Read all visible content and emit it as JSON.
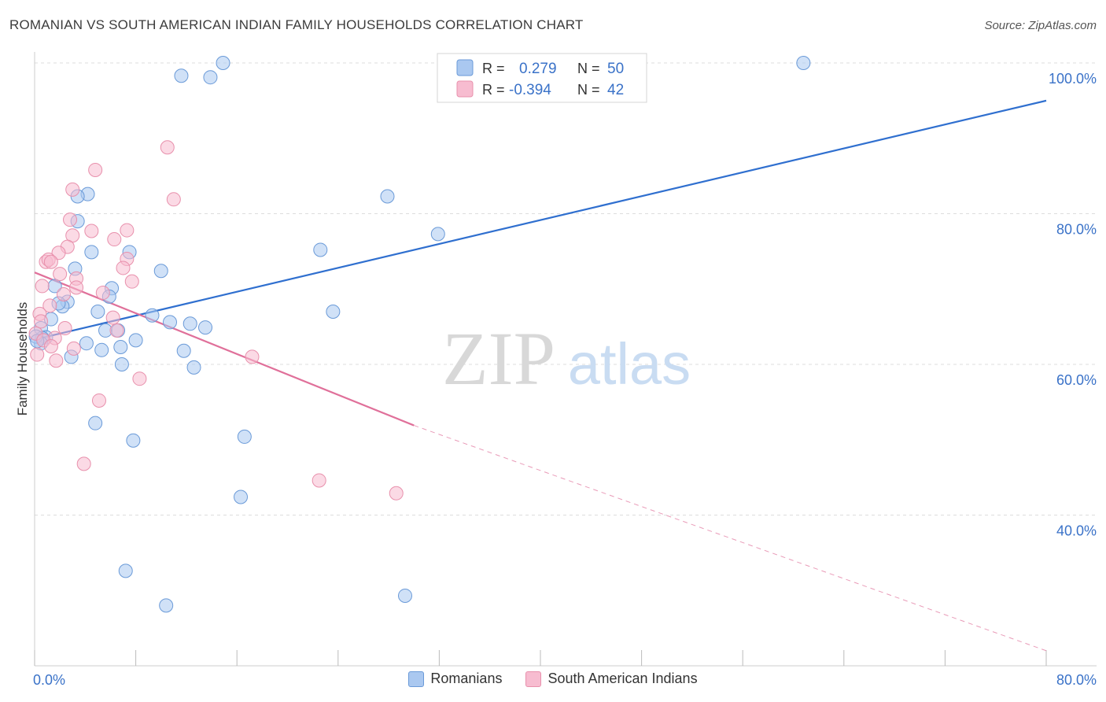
{
  "title": "ROMANIAN VS SOUTH AMERICAN INDIAN FAMILY HOUSEHOLDS CORRELATION CHART",
  "source": "Source: ZipAtlas.com",
  "watermark": {
    "zip": "ZIP",
    "atlas": "atlas"
  },
  "legend_box": {
    "rows": [
      {
        "r_label": "R =",
        "r_value": "0.279",
        "n_label": "N =",
        "n_value": "50"
      },
      {
        "r_label": "R =",
        "r_value": "-0.394",
        "n_label": "N =",
        "n_value": "42"
      }
    ]
  },
  "bottom_legend": {
    "romanians": "Romanians",
    "south_american_indians": "South American Indians"
  },
  "colors": {
    "blue_fill": "#aac8f0",
    "blue_stroke": "#6a9ad8",
    "blue_line": "#2f6fcf",
    "pink_fill": "#f7bcd0",
    "pink_stroke": "#e890ac",
    "pink_line": "#e0709a",
    "value_text": "#3a72c8",
    "grid": "#dddddd"
  },
  "chart_data": {
    "type": "scatter",
    "title": "ROMANIAN VS SOUTH AMERICAN INDIAN FAMILY HOUSEHOLDS CORRELATION CHART",
    "xlabel": "",
    "ylabel": "Family Households",
    "xlim": [
      0,
      80
    ],
    "ylim": [
      20,
      100
    ],
    "x_tick_labels": [
      {
        "value": 0,
        "label": "0.0%"
      },
      {
        "value": 80,
        "label": "80.0%"
      }
    ],
    "y_tick_labels": [
      {
        "value": 100,
        "label": "100.0%"
      },
      {
        "value": 80,
        "label": "80.0%"
      },
      {
        "value": 60,
        "label": "60.0%"
      },
      {
        "value": 40,
        "label": "40.0%"
      }
    ],
    "series": [
      {
        "name": "Romanians",
        "R": 0.279,
        "N": 50,
        "trend": {
          "x0": 0,
          "y0": 63.3,
          "x1": 80,
          "y1": 95.0
        },
        "points": [
          [
            14.9,
            100.0
          ],
          [
            11.6,
            98.3
          ],
          [
            13.9,
            98.1
          ],
          [
            60.8,
            100.0
          ],
          [
            4.2,
            82.6
          ],
          [
            3.4,
            82.3
          ],
          [
            27.9,
            82.3
          ],
          [
            3.4,
            79.0
          ],
          [
            31.9,
            77.3
          ],
          [
            4.5,
            74.9
          ],
          [
            22.6,
            75.2
          ],
          [
            7.5,
            74.9
          ],
          [
            3.2,
            72.7
          ],
          [
            10.0,
            72.4
          ],
          [
            1.6,
            70.4
          ],
          [
            6.1,
            70.1
          ],
          [
            2.6,
            68.3
          ],
          [
            2.2,
            67.7
          ],
          [
            5.9,
            69.0
          ],
          [
            5.0,
            67.0
          ],
          [
            23.6,
            67.0
          ],
          [
            9.3,
            66.5
          ],
          [
            1.3,
            66.0
          ],
          [
            0.5,
            64.8
          ],
          [
            0.9,
            63.6
          ],
          [
            10.7,
            65.6
          ],
          [
            12.3,
            65.4
          ],
          [
            13.5,
            64.9
          ],
          [
            0.6,
            63.5
          ],
          [
            5.6,
            64.5
          ],
          [
            6.6,
            64.5
          ],
          [
            8.0,
            63.2
          ],
          [
            0.5,
            62.8
          ],
          [
            4.1,
            62.8
          ],
          [
            6.8,
            62.3
          ],
          [
            5.3,
            61.9
          ],
          [
            11.8,
            61.8
          ],
          [
            2.9,
            61.0
          ],
          [
            6.9,
            60.0
          ],
          [
            12.6,
            59.6
          ],
          [
            4.8,
            52.2
          ],
          [
            7.8,
            49.9
          ],
          [
            16.6,
            50.4
          ],
          [
            16.3,
            42.4
          ],
          [
            7.2,
            32.6
          ],
          [
            10.4,
            28.0
          ],
          [
            29.3,
            29.3
          ],
          [
            0.1,
            63.7
          ],
          [
            1.9,
            68.1
          ],
          [
            0.2,
            63.1
          ]
        ]
      },
      {
        "name": "South American Indians",
        "R": -0.394,
        "N": 42,
        "trend": {
          "x0": 0,
          "y0": 72.2,
          "x1": 30.0,
          "y1": 51.9
        },
        "trend_extension": {
          "x0": 30.0,
          "y0": 51.9,
          "x1": 80,
          "y1": 22.0
        },
        "points": [
          [
            10.5,
            88.8
          ],
          [
            4.8,
            85.8
          ],
          [
            3.0,
            83.2
          ],
          [
            11.0,
            81.9
          ],
          [
            2.8,
            79.2
          ],
          [
            7.3,
            77.8
          ],
          [
            4.5,
            77.7
          ],
          [
            3.0,
            77.1
          ],
          [
            6.3,
            76.6
          ],
          [
            2.6,
            75.6
          ],
          [
            1.9,
            74.8
          ],
          [
            0.9,
            73.6
          ],
          [
            7.3,
            74.0
          ],
          [
            1.1,
            73.9
          ],
          [
            1.3,
            73.6
          ],
          [
            2.0,
            72.0
          ],
          [
            7.0,
            72.8
          ],
          [
            3.3,
            71.4
          ],
          [
            7.7,
            71.0
          ],
          [
            0.6,
            70.4
          ],
          [
            3.3,
            70.2
          ],
          [
            5.4,
            69.5
          ],
          [
            2.3,
            69.3
          ],
          [
            1.2,
            67.8
          ],
          [
            0.4,
            66.7
          ],
          [
            6.2,
            66.2
          ],
          [
            0.5,
            65.7
          ],
          [
            2.4,
            64.8
          ],
          [
            6.5,
            64.5
          ],
          [
            0.1,
            64.1
          ],
          [
            1.6,
            63.5
          ],
          [
            0.7,
            63.2
          ],
          [
            3.1,
            62.1
          ],
          [
            1.3,
            62.4
          ],
          [
            0.2,
            61.3
          ],
          [
            1.7,
            60.5
          ],
          [
            17.2,
            61.0
          ],
          [
            8.3,
            58.1
          ],
          [
            5.1,
            55.2
          ],
          [
            3.9,
            46.8
          ],
          [
            22.5,
            44.6
          ],
          [
            28.6,
            42.9
          ]
        ]
      }
    ]
  }
}
